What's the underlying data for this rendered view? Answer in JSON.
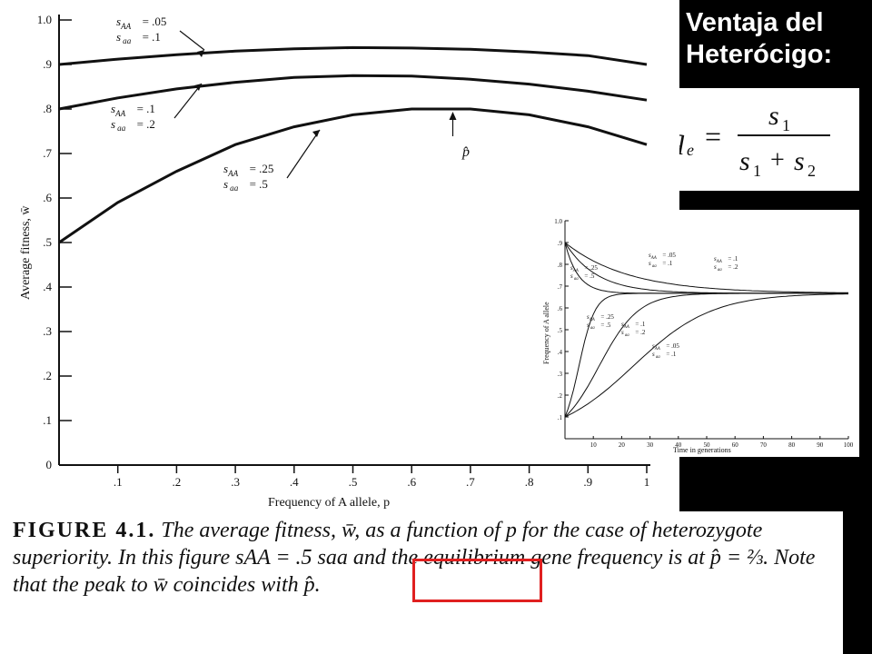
{
  "slide": {
    "title_line1": "Ventaja del",
    "title_line2": "Heterócigo:",
    "formula": {
      "lhs": "q",
      "lhs_sub": "e",
      "equals": "=",
      "numerator": "s",
      "numerator_sub": "1",
      "den_a": "s",
      "den_a_sub": "1",
      "plus": "+",
      "den_b": "s",
      "den_b_sub": "2"
    }
  },
  "caption": {
    "figure_label": "FIGURE 4.1.",
    "part1": "The average fitness, w̄, as a function of p for the case of heterozygote superiority. In this figure",
    "highlight": "sAA = .5 saa",
    "part2": "and the equilibrium gene frequency is at p̂ = ⅔. Note that the peak to w̄ coincides with p̂."
  },
  "colors": {
    "highlight": "#e02020",
    "background": "#000000",
    "paper": "#ffffff",
    "ink": "#111111"
  },
  "chart_data": [
    {
      "type": "line",
      "xlabel": "Frequency of A allele, p",
      "ylabel": "Average fitness, w̄",
      "xlim": [
        0,
        1
      ],
      "ylim": [
        0,
        1
      ],
      "x_ticks": [
        ".1",
        ".2",
        ".3",
        ".4",
        ".5",
        ".6",
        ".7",
        ".8",
        ".9",
        "1"
      ],
      "y_ticks": [
        "0",
        ".1",
        ".2",
        ".3",
        ".4",
        ".5",
        ".6",
        ".7",
        ".8",
        ".9",
        "1.0"
      ],
      "series": [
        {
          "sAA": ".05",
          "saa": ".1",
          "x": [
            0,
            0.1,
            0.2,
            0.3,
            0.4,
            0.5,
            0.6,
            0.7,
            0.8,
            0.9,
            1.0
          ],
          "values": [
            0.9,
            0.912,
            0.922,
            0.93,
            0.935,
            0.938,
            0.937,
            0.934,
            0.928,
            0.92,
            0.9
          ]
        },
        {
          "sAA": ".1",
          "saa": ".2",
          "x": [
            0,
            0.1,
            0.2,
            0.3,
            0.4,
            0.5,
            0.6,
            0.7,
            0.8,
            0.9,
            1.0
          ],
          "values": [
            0.8,
            0.825,
            0.845,
            0.86,
            0.871,
            0.875,
            0.874,
            0.867,
            0.856,
            0.84,
            0.82
          ]
        },
        {
          "sAA": ".25",
          "saa": ".5",
          "x": [
            0,
            0.1,
            0.2,
            0.3,
            0.4,
            0.5,
            0.6,
            0.7,
            0.8,
            0.9,
            1.0
          ],
          "values": [
            0.5,
            0.59,
            0.66,
            0.72,
            0.76,
            0.787,
            0.8,
            0.8,
            0.787,
            0.76,
            0.72
          ]
        }
      ],
      "peak_label": "p̂",
      "peak_x": 0.67
    },
    {
      "type": "line",
      "xlabel": "Time in generations",
      "ylabel": "Frequency of A allele",
      "xlim": [
        0,
        100
      ],
      "ylim": [
        0,
        1
      ],
      "x_ticks": [
        "10",
        "20",
        "30",
        "40",
        "50",
        "60",
        "70",
        "80",
        "90",
        "100"
      ],
      "y_ticks": [
        ".1",
        ".2",
        ".3",
        ".4",
        ".5",
        ".6",
        ".7",
        ".8",
        ".9",
        "1.0"
      ],
      "series": [
        {
          "sAA": ".05",
          "saa": ".1",
          "start": 0.9,
          "rate": 0.045
        },
        {
          "sAA": ".1",
          "saa": ".2",
          "start": 0.9,
          "rate": 0.09
        },
        {
          "sAA": ".25",
          "saa": ".5",
          "start": 0.9,
          "rate": 0.22
        },
        {
          "sAA": ".25",
          "saa": ".5",
          "start": 0.1,
          "rate": 0.22
        },
        {
          "sAA": ".1",
          "saa": ".2",
          "start": 0.1,
          "rate": 0.09
        },
        {
          "sAA": ".05",
          "saa": ".1",
          "start": 0.1,
          "rate": 0.045
        }
      ],
      "equilibrium": 0.667
    }
  ]
}
